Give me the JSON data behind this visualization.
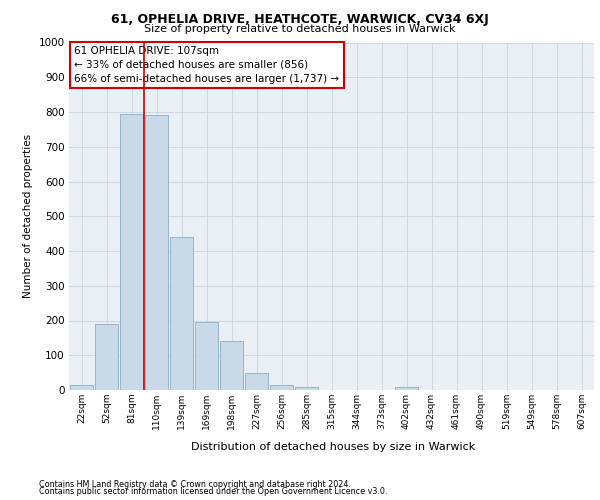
{
  "title1": "61, OPHELIA DRIVE, HEATHCOTE, WARWICK, CV34 6XJ",
  "title2": "Size of property relative to detached houses in Warwick",
  "xlabel": "Distribution of detached houses by size in Warwick",
  "ylabel": "Number of detached properties",
  "footer1": "Contains HM Land Registry data © Crown copyright and database right 2024.",
  "footer2": "Contains public sector information licensed under the Open Government Licence v3.0.",
  "annotation_line1": "61 OPHELIA DRIVE: 107sqm",
  "annotation_line2": "← 33% of detached houses are smaller (856)",
  "annotation_line3": "66% of semi-detached houses are larger (1,737) →",
  "bar_labels": [
    "22sqm",
    "52sqm",
    "81sqm",
    "110sqm",
    "139sqm",
    "169sqm",
    "198sqm",
    "227sqm",
    "256sqm",
    "285sqm",
    "315sqm",
    "344sqm",
    "373sqm",
    "402sqm",
    "432sqm",
    "461sqm",
    "490sqm",
    "519sqm",
    "549sqm",
    "578sqm",
    "607sqm"
  ],
  "bar_values": [
    15,
    190,
    795,
    790,
    440,
    195,
    140,
    50,
    15,
    10,
    0,
    0,
    0,
    10,
    0,
    0,
    0,
    0,
    0,
    0,
    0
  ],
  "bar_color": "#c9d9e8",
  "bar_edge_color": "#8aaec8",
  "vline_color": "#cc0000",
  "vline_x": 2.5,
  "grid_color": "#c8d4de",
  "bg_color": "#eaeff5",
  "ann_edge_color": "#cc0000",
  "ylim": [
    0,
    1000
  ],
  "yticks": [
    0,
    100,
    200,
    300,
    400,
    500,
    600,
    700,
    800,
    900,
    1000
  ]
}
